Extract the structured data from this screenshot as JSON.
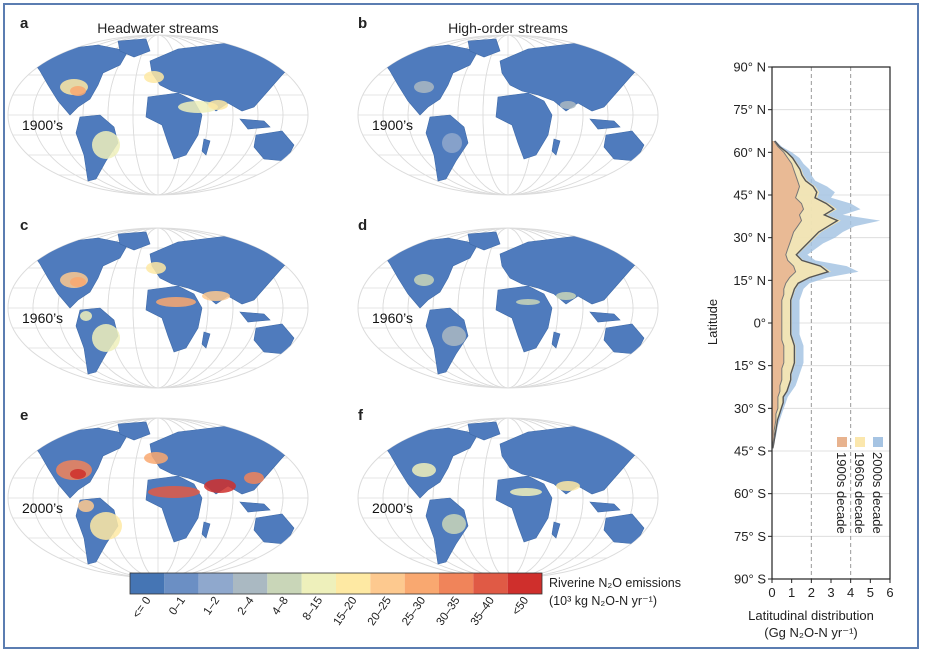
{
  "colors": {
    "frame": "#5b7db1",
    "ocean_grid": "#dcdcdc",
    "land_base": "#4f7bbd",
    "series_1900s": "#e8b38f",
    "series_1960s": "#fbe7ad",
    "series_2000s": "#a6c4e3",
    "mean_line": "#555555",
    "colorbar": [
      "#4575b4",
      "#6b8fc4",
      "#8fa8cd",
      "#aab9c2",
      "#c9d6b8",
      "#eef0bb",
      "#fee9a3",
      "#fdc98f",
      "#f9a870",
      "#f0845a",
      "#e05a45",
      "#cf2f2c"
    ]
  },
  "panels": [
    {
      "letter": "a",
      "decade": "1900’s",
      "column": "headwater"
    },
    {
      "letter": "b",
      "decade": "1900’s",
      "column": "high-order"
    },
    {
      "letter": "c",
      "decade": "1960’s",
      "column": "headwater"
    },
    {
      "letter": "d",
      "decade": "1960’s",
      "column": "high-order"
    },
    {
      "letter": "e",
      "decade": "2000’s",
      "column": "headwater"
    },
    {
      "letter": "f",
      "decade": "2000’s",
      "column": "high-order"
    }
  ],
  "column_titles": {
    "headwater": "Headwater streams",
    "high_order": "High-order streams"
  },
  "colorbar": {
    "labels": [
      "<= 0",
      "0–1",
      "1–2",
      "2–4",
      "4–8",
      "8–15",
      "15–20",
      "20–25",
      "25–30",
      "30–35",
      "35–40",
      "<50"
    ],
    "title_line1": "Riverine N₂O emissions",
    "title_line2": "(10³ kg N₂O-N yr⁻¹)"
  },
  "chart_data": {
    "type": "area",
    "title": "",
    "xlabel_line1": "Latitudinal distribution",
    "xlabel_line2": "(Gg N₂O-N yr⁻¹)",
    "ylabel": "Latitude",
    "xlim": [
      0,
      6
    ],
    "ylim": [
      -90,
      90
    ],
    "xticks": [
      "0",
      "1",
      "2",
      "3",
      "4",
      "5",
      "6"
    ],
    "ytick_values": [
      90,
      75,
      60,
      45,
      30,
      15,
      0,
      -15,
      -30,
      -45,
      -60,
      -75,
      -90
    ],
    "yticks": [
      "90° N",
      "75° N",
      "60° N",
      "45° N",
      "30° N",
      "15° N",
      "0°",
      "15° S",
      "30° S",
      "45° S",
      "60° S",
      "75° S",
      "90° S"
    ],
    "dashed_verticals": [
      2,
      4
    ],
    "legend_placement": "bottom-right",
    "legend": [
      "1900s decade",
      "1960s decade",
      "2000s decade"
    ],
    "latitude": [
      64,
      62,
      60,
      58,
      56,
      54,
      52,
      50,
      48,
      46,
      44,
      42,
      40,
      38,
      36,
      34,
      32,
      30,
      28,
      26,
      24,
      22,
      20,
      18,
      16,
      14,
      12,
      10,
      8,
      6,
      4,
      2,
      0,
      -2,
      -4,
      -6,
      -8,
      -10,
      -12,
      -14,
      -16,
      -18,
      -20,
      -22,
      -24,
      -26,
      -28,
      -30,
      -32,
      -34,
      -36,
      -38,
      -40,
      -42,
      -44
    ],
    "series": [
      {
        "name": "1900s decade",
        "values": [
          0.1,
          0.3,
          0.6,
          0.8,
          1.0,
          1.1,
          1.2,
          1.3,
          1.4,
          1.3,
          1.2,
          1.5,
          1.6,
          1.4,
          1.5,
          1.3,
          1.1,
          1.0,
          0.9,
          0.8,
          0.7,
          0.8,
          1.1,
          1.2,
          0.9,
          0.7,
          0.6,
          0.6,
          0.5,
          0.5,
          0.5,
          0.5,
          0.5,
          0.5,
          0.5,
          0.5,
          0.6,
          0.6,
          0.6,
          0.6,
          0.5,
          0.5,
          0.5,
          0.4,
          0.4,
          0.3,
          0.3,
          0.3,
          0.2,
          0.2,
          0.15,
          0.1,
          0.1,
          0.05,
          0.05
        ]
      },
      {
        "name": "1960s decade",
        "values": [
          0.15,
          0.4,
          0.8,
          1.1,
          1.3,
          1.5,
          1.6,
          1.8,
          2.2,
          2.4,
          2.3,
          2.9,
          3.3,
          2.8,
          3.5,
          3.0,
          2.5,
          2.2,
          1.9,
          1.6,
          1.3,
          1.6,
          2.6,
          3.0,
          2.0,
          1.4,
          1.2,
          1.1,
          1.0,
          1.0,
          1.0,
          1.0,
          1.0,
          1.0,
          1.0,
          1.1,
          1.2,
          1.2,
          1.2,
          1.2,
          1.1,
          1.0,
          1.0,
          0.9,
          0.8,
          0.6,
          0.6,
          0.5,
          0.4,
          0.3,
          0.25,
          0.2,
          0.15,
          0.1,
          0.05
        ]
      },
      {
        "name": "2000s decade",
        "values": [
          0.2,
          0.5,
          1.0,
          1.4,
          1.6,
          1.9,
          2.0,
          2.2,
          2.8,
          3.2,
          3.0,
          4.0,
          4.5,
          3.6,
          5.5,
          4.2,
          3.6,
          3.2,
          2.6,
          2.2,
          1.8,
          2.2,
          3.8,
          4.4,
          2.8,
          1.9,
          1.6,
          1.5,
          1.4,
          1.4,
          1.4,
          1.4,
          1.4,
          1.4,
          1.4,
          1.5,
          1.6,
          1.6,
          1.6,
          1.6,
          1.5,
          1.4,
          1.3,
          1.2,
          1.0,
          0.8,
          0.7,
          0.6,
          0.5,
          0.4,
          0.3,
          0.25,
          0.2,
          0.1,
          0.05
        ]
      }
    ]
  }
}
